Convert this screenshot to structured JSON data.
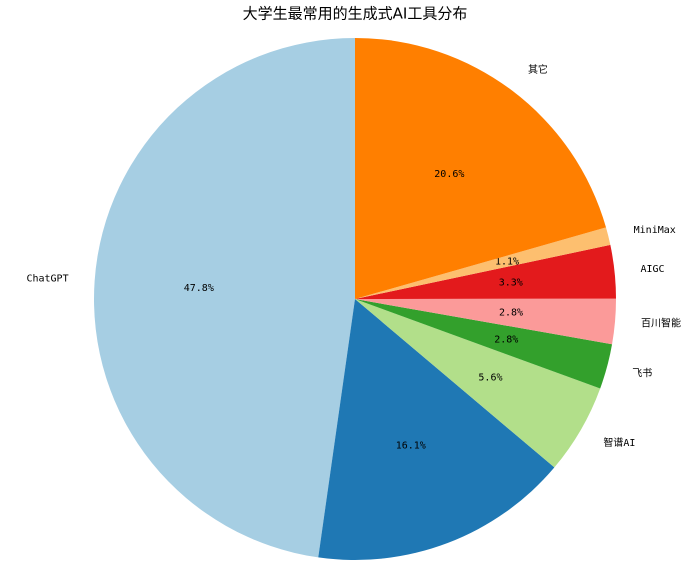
{
  "chart_data": {
    "type": "pie",
    "title": "大学生最常用的生成式AI工具分布",
    "categories": [
      "ChatGPT",
      null,
      "智谱AI",
      "飞书",
      "百川智能",
      "AIGC",
      "MiniMax",
      "其它"
    ],
    "values": [
      47.8,
      16.1,
      5.6,
      2.8,
      2.8,
      3.3,
      1.1,
      20.6
    ],
    "value_labels": [
      "47.8%",
      "16.1%",
      "5.6%",
      "2.8%",
      "2.8%",
      "3.3%",
      "1.1%",
      "20.6%"
    ],
    "colors": [
      "#a6cee3",
      "#1f78b4",
      "#b2df8a",
      "#33a02c",
      "#fb9a99",
      "#e31a1c",
      "#fdbf6f",
      "#ff7f00"
    ]
  }
}
